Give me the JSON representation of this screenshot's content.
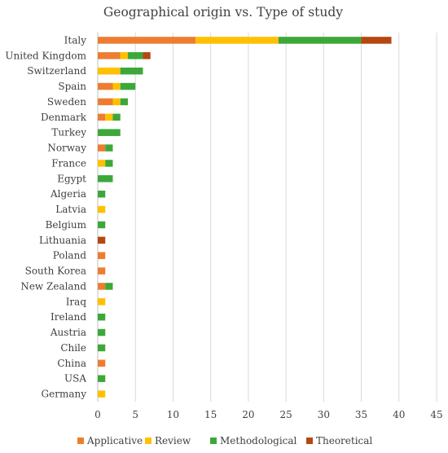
{
  "chart_data": {
    "type": "bar",
    "orientation": "horizontal",
    "stacked": true,
    "title": "Geographical origin vs. Type of study",
    "xlabel": "",
    "ylabel": "",
    "xlim": [
      0,
      45
    ],
    "xticks": [
      0,
      5,
      10,
      15,
      20,
      25,
      30,
      35,
      40,
      45
    ],
    "grid": "vertical",
    "legend_position": "bottom",
    "categories": [
      "Italy",
      "United Kingdom",
      "Switzerland",
      "Spain",
      "Sweden",
      "Denmark",
      "Turkey",
      "Norway",
      "France",
      "Egypt",
      "Algeria",
      "Latvia",
      "Belgium",
      "Lithuania",
      "Poland",
      "South Korea",
      "New Zealand",
      "Iraq",
      "Ireland",
      "Austria",
      "Chile",
      "China",
      "USA",
      "Germany"
    ],
    "series": [
      {
        "name": "Applicative",
        "color": "#ED7D31",
        "values": [
          13,
          3,
          0,
          2,
          2,
          1,
          0,
          1,
          0,
          0,
          0,
          0,
          0,
          0,
          1,
          1,
          1,
          0,
          0,
          0,
          0,
          1,
          0,
          0
        ]
      },
      {
        "name": "Review",
        "color": "#FFC000",
        "values": [
          11,
          1,
          3,
          1,
          1,
          1,
          0,
          0,
          1,
          0,
          0,
          1,
          0,
          0,
          0,
          0,
          0,
          1,
          0,
          0,
          0,
          0,
          0,
          1
        ]
      },
      {
        "name": "Methodological",
        "color": "#3DA83A",
        "values": [
          11,
          2,
          3,
          2,
          1,
          1,
          3,
          1,
          1,
          2,
          1,
          0,
          1,
          0,
          0,
          0,
          1,
          0,
          1,
          1,
          1,
          0,
          1,
          0
        ]
      },
      {
        "name": "Theoretical",
        "color": "#B5470F",
        "values": [
          4,
          1,
          0,
          0,
          0,
          0,
          0,
          0,
          0,
          0,
          0,
          0,
          0,
          1,
          0,
          0,
          0,
          0,
          0,
          0,
          0,
          0,
          0,
          0
        ]
      }
    ]
  }
}
